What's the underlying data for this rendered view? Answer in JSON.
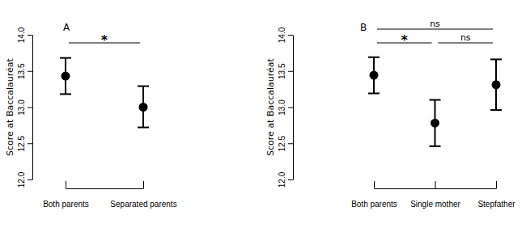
{
  "chart_data": [
    {
      "type": "scatter",
      "title": "A",
      "categories": [
        "Both parents",
        "Separated parents"
      ],
      "values": [
        13.43,
        13.0
      ],
      "lower": [
        13.18,
        12.72
      ],
      "upper": [
        13.68,
        13.29
      ],
      "ylabel": "Score at Baccalauréat",
      "ylim": [
        12,
        14
      ],
      "yticks": [
        {
          "value": 12,
          "label": "12.0"
        },
        {
          "value": 12.5,
          "label": "12.5"
        },
        {
          "value": 13,
          "label": "13.0"
        },
        {
          "value": 13.5,
          "label": "13.5"
        },
        {
          "value": 14,
          "label": "14.0"
        }
      ],
      "color": "#000000",
      "marker": "circle",
      "grid": false,
      "annotations": [
        {
          "text": "*",
          "between": [
            0,
            1
          ]
        }
      ]
    },
    {
      "type": "scatter",
      "title": "B",
      "categories": [
        "Both parents",
        "Single mother",
        "Stepfather"
      ],
      "values": [
        13.44,
        12.78,
        13.31
      ],
      "lower": [
        13.19,
        12.46,
        12.96
      ],
      "upper": [
        13.69,
        13.1,
        13.66
      ],
      "ylabel": "Score at Baccalauréat",
      "ylim": [
        12,
        14
      ],
      "yticks": [
        {
          "value": 12,
          "label": "12.0"
        },
        {
          "value": 12.5,
          "label": "12.5"
        },
        {
          "value": 13,
          "label": "13.0"
        },
        {
          "value": 13.5,
          "label": "13.5"
        },
        {
          "value": 14,
          "label": "14.0"
        }
      ],
      "color": "#000000",
      "marker": "circle",
      "grid": false,
      "annotations": [
        {
          "text": "*",
          "between": [
            0,
            1
          ]
        },
        {
          "text": "ns",
          "between": [
            1,
            2
          ]
        },
        {
          "text": "ns",
          "between": [
            0,
            2
          ]
        }
      ]
    }
  ]
}
